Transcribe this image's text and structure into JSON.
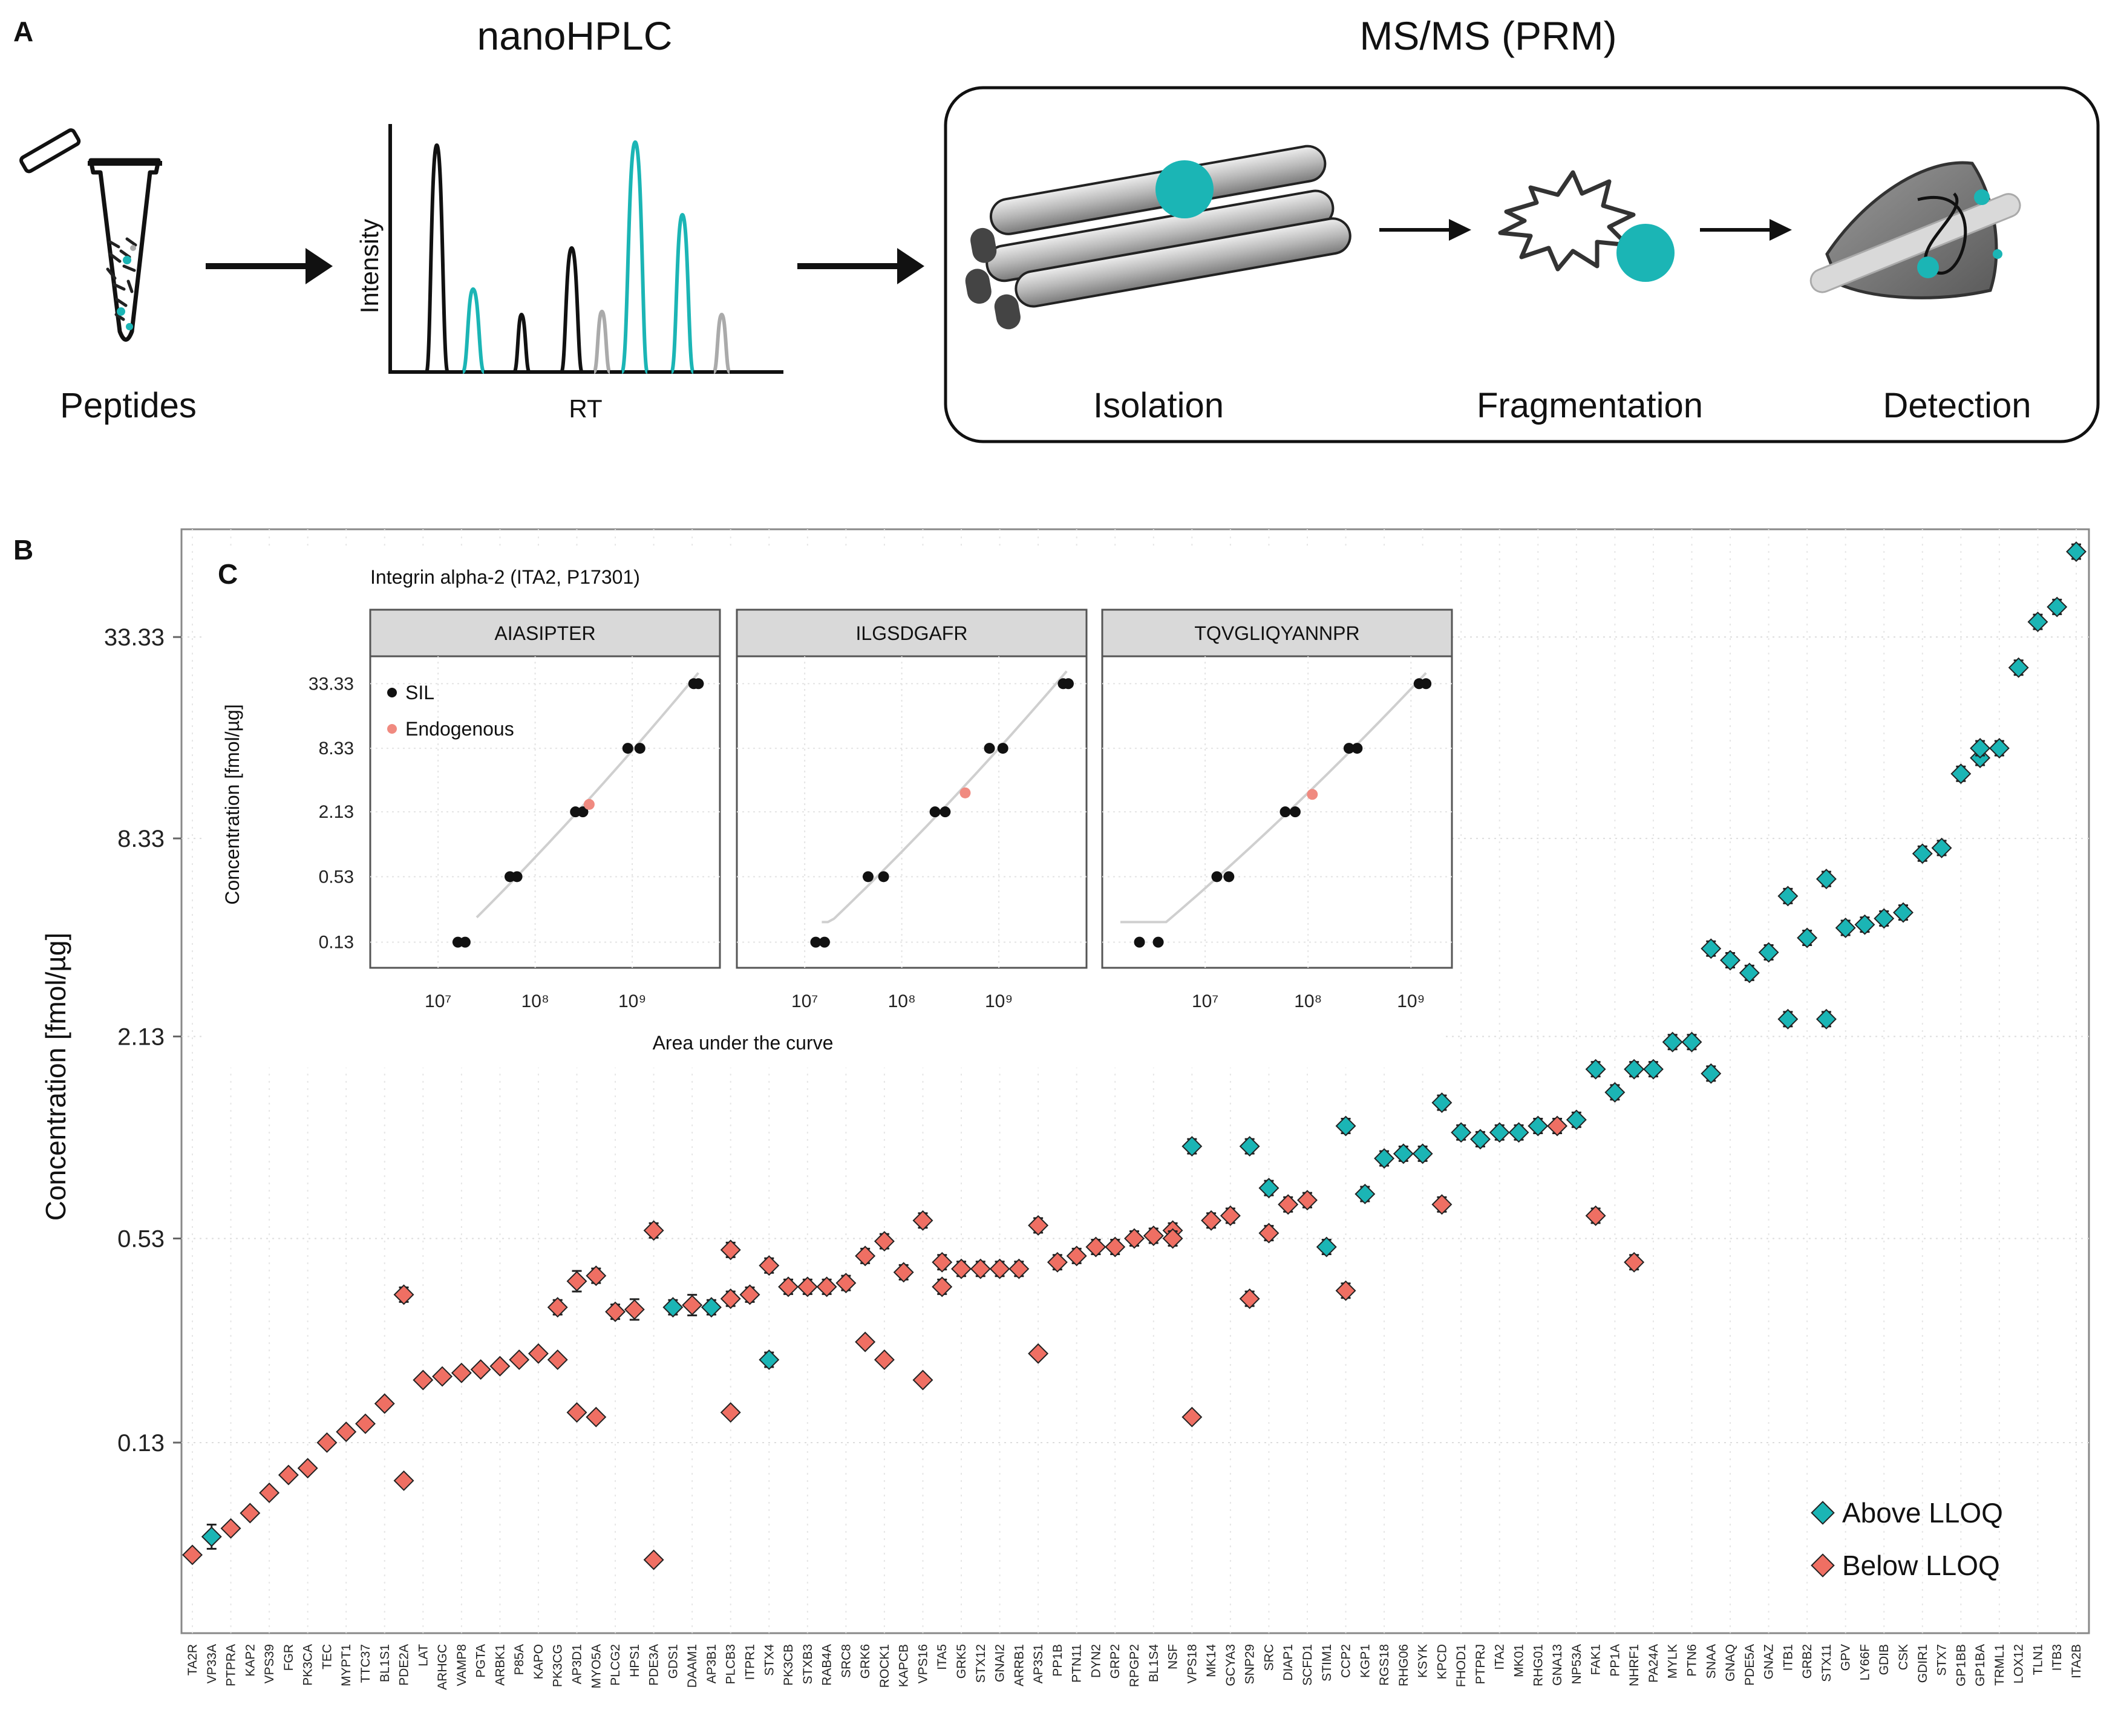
{
  "panelA": {
    "letter": "A",
    "step_peptides": "Peptides",
    "step_lc": "nanoHPLC",
    "lc_y_label": "Intensity",
    "lc_x_label": "RT",
    "step_ms": "MS/MS (PRM)",
    "ms_stages": [
      "Isolation",
      "Fragmentation",
      "Detection"
    ]
  },
  "panelB": {
    "letter": "B"
  },
  "panelC": {
    "letter": "C"
  },
  "colors": {
    "above": "#1bb5b5",
    "below": "#ef6f63",
    "black": "#111111",
    "gray": "#aaaaaa"
  },
  "chart_data": [
    {
      "id": "main",
      "type": "scatter",
      "ylabel": "Concentration [fmol/µg]",
      "y_scale": "log",
      "y_ticks": [
        "0.13",
        "0.53",
        "2.13",
        "8.33",
        "33.33"
      ],
      "ylim": [
        0.035,
        70
      ],
      "legend": [
        "Above LLOQ",
        "Below LLOQ"
      ],
      "legend_position": "bottom-right",
      "categories": [
        "TA2R",
        "VP33A",
        "PTPRA",
        "KAP2",
        "VPS39",
        "FGR",
        "PK3CA",
        "TEC",
        "MYPT1",
        "TTC37",
        "BL1S1",
        "PDE2A",
        "LAT",
        "ARHGC",
        "VAMP8",
        "PGTA",
        "ARBK1",
        "P85A",
        "KAPO",
        "PK3CG",
        "AP3D1",
        "MYO5A",
        "PLCG2",
        "HPS1",
        "PDE3A",
        "GDS1",
        "DAAM1",
        "AP3B1",
        "PLCB3",
        "ITPR1",
        "STX4",
        "PK3CB",
        "STXB3",
        "RAB4A",
        "SRC8",
        "GRK6",
        "ROCK1",
        "KAPCB",
        "VPS16",
        "ITA5",
        "GRK5",
        "STX12",
        "GNAI2",
        "ARRB1",
        "AP3S1",
        "PP1B",
        "PTN11",
        "DYN2",
        "GRP2",
        "RPGP2",
        "BL1S4",
        "NSF",
        "VPS18",
        "MK14",
        "GCYA3",
        "SNP29",
        "SRC",
        "DIAP1",
        "SCFD1",
        "STIM1",
        "CCP2",
        "KGP1",
        "RGS18",
        "RHG06",
        "KSYK",
        "KPCD",
        "FHOD1",
        "PTPRJ",
        "ITA2",
        "MK01",
        "RHG01",
        "GNA13",
        "NP53A",
        "FAK1",
        "PP1A",
        "NHRF1",
        "PA24A",
        "MYLK",
        "PTN6",
        "SNAA",
        "GNAQ",
        "PDE5A",
        "GNAZ",
        "ITB1",
        "GRB2",
        "STX11",
        "GPV",
        "LY66F",
        "GDIB",
        "CSK",
        "GDIR1",
        "STX7",
        "GP1BB",
        "GP1BA",
        "TRML1",
        "LOX12",
        "TLN1",
        "ITB3",
        "ITA2B"
      ],
      "series": [
        {
          "name": "Above LLOQ",
          "points": [
            {
              "x": "VP33A",
              "y": 0.068
            },
            {
              "x": "GDS1",
              "y": 0.33
            },
            {
              "x": "AP3B1",
              "y": 0.33
            },
            {
              "x": "STX4",
              "y": 0.23
            },
            {
              "x": "VPS18",
              "y": 1.0
            },
            {
              "x": "SNP29",
              "y": 1.0
            },
            {
              "x": "SRC",
              "y": 0.75
            },
            {
              "x": "STIM1",
              "y": 0.5
            },
            {
              "x": "CCP2",
              "y": 1.15
            },
            {
              "x": "KGP1",
              "y": 0.72
            },
            {
              "x": "RGS18",
              "y": 0.92
            },
            {
              "x": "RHG06",
              "y": 0.95
            },
            {
              "x": "KSYK",
              "y": 0.95
            },
            {
              "x": "KPCD",
              "y": 1.35
            },
            {
              "x": "FHOD1",
              "y": 1.1
            },
            {
              "x": "PTPRJ",
              "y": 1.05
            },
            {
              "x": "ITA2",
              "y": 1.1
            },
            {
              "x": "MK01",
              "y": 1.1
            },
            {
              "x": "RHG01",
              "y": 1.15
            },
            {
              "x": "NP53A",
              "y": 1.2
            },
            {
              "x": "FAK1",
              "y": 1.7
            },
            {
              "x": "PP1A",
              "y": 1.45
            },
            {
              "x": "NHRF1",
              "y": 1.7
            },
            {
              "x": "PA24A",
              "y": 1.7
            },
            {
              "x": "MYLK",
              "y": 2.05
            },
            {
              "x": "PTN6",
              "y": 2.05
            },
            {
              "x": "SNAA",
              "y": 1.65
            },
            {
              "x": "SNAA",
              "y": 3.9
            },
            {
              "x": "GNAQ",
              "y": 3.6
            },
            {
              "x": "PDE5A",
              "y": 3.3
            },
            {
              "x": "GNAZ",
              "y": 3.8
            },
            {
              "x": "ITB1",
              "y": 5.6
            },
            {
              "x": "ITB1",
              "y": 2.4
            },
            {
              "x": "GRB2",
              "y": 4.2
            },
            {
              "x": "STX11",
              "y": 6.3
            },
            {
              "x": "STX11",
              "y": 2.4
            },
            {
              "x": "GPV",
              "y": 4.5
            },
            {
              "x": "LY66F",
              "y": 4.6
            },
            {
              "x": "GDIB",
              "y": 4.8
            },
            {
              "x": "CSK",
              "y": 5.0
            },
            {
              "x": "GDIR1",
              "y": 7.5
            },
            {
              "x": "STX7",
              "y": 7.8
            },
            {
              "x": "GP1BB",
              "y": 13.0
            },
            {
              "x": "GP1BA",
              "y": 14.5
            },
            {
              "x": "GP1BA",
              "y": 15.5
            },
            {
              "x": "TRML1",
              "y": 15.5
            },
            {
              "x": "LOX12",
              "y": 27
            },
            {
              "x": "TLN1",
              "y": 37
            },
            {
              "x": "ITB3",
              "y": 41
            },
            {
              "x": "ITA2B",
              "y": 60
            }
          ]
        },
        {
          "name": "Below LLOQ",
          "points": [
            {
              "x": "TA2R",
              "y": 0.06
            },
            {
              "x": "PTPRA",
              "y": 0.072
            },
            {
              "x": "KAP2",
              "y": 0.08
            },
            {
              "x": "VPS39",
              "y": 0.092
            },
            {
              "x": "FGR",
              "y": 0.104
            },
            {
              "x": "PK3CA",
              "y": 0.109
            },
            {
              "x": "TEC",
              "y": 0.13
            },
            {
              "x": "MYPT1",
              "y": 0.14
            },
            {
              "x": "TTC37",
              "y": 0.148
            },
            {
              "x": "BL1S1",
              "y": 0.17
            },
            {
              "x": "PDE2A",
              "y": 0.36
            },
            {
              "x": "PDE2A",
              "y": 0.1
            },
            {
              "x": "LAT",
              "y": 0.2
            },
            {
              "x": "ARHGC",
              "y": 0.205
            },
            {
              "x": "VAMP8",
              "y": 0.21
            },
            {
              "x": "PGTA",
              "y": 0.215
            },
            {
              "x": "ARBK1",
              "y": 0.22
            },
            {
              "x": "P85A",
              "y": 0.23
            },
            {
              "x": "KAPO",
              "y": 0.24
            },
            {
              "x": "PK3CG",
              "y": 0.33
            },
            {
              "x": "PK3CG",
              "y": 0.23
            },
            {
              "x": "AP3D1",
              "y": 0.395
            },
            {
              "x": "AP3D1",
              "y": 0.16
            },
            {
              "x": "MYO5A",
              "y": 0.41
            },
            {
              "x": "MYO5A",
              "y": 0.155
            },
            {
              "x": "PLCG2",
              "y": 0.32
            },
            {
              "x": "HPS1",
              "y": 0.325
            },
            {
              "x": "PDE3A",
              "y": 0.56
            },
            {
              "x": "PDE3A",
              "y": 0.058
            },
            {
              "x": "DAAM1",
              "y": 0.335
            },
            {
              "x": "PLCB3",
              "y": 0.35
            },
            {
              "x": "PLCB3",
              "y": 0.16
            },
            {
              "x": "PLCB3",
              "y": 0.49
            },
            {
              "x": "ITPR1",
              "y": 0.36
            },
            {
              "x": "STX4",
              "y": 0.44
            },
            {
              "x": "PK3CB",
              "y": 0.38
            },
            {
              "x": "STXB3",
              "y": 0.38
            },
            {
              "x": "RAB4A",
              "y": 0.38
            },
            {
              "x": "SRC8",
              "y": 0.39
            },
            {
              "x": "GRK6",
              "y": 0.47
            },
            {
              "x": "GRK6",
              "y": 0.26
            },
            {
              "x": "ROCK1",
              "y": 0.52
            },
            {
              "x": "ROCK1",
              "y": 0.23
            },
            {
              "x": "KAPCB",
              "y": 0.42
            },
            {
              "x": "VPS16",
              "y": 0.6
            },
            {
              "x": "VPS16",
              "y": 0.2
            },
            {
              "x": "ITA5",
              "y": 0.45
            },
            {
              "x": "ITA5",
              "y": 0.38
            },
            {
              "x": "GRK5",
              "y": 0.43
            },
            {
              "x": "STX12",
              "y": 0.43
            },
            {
              "x": "GNAI2",
              "y": 0.43
            },
            {
              "x": "ARRB1",
              "y": 0.43
            },
            {
              "x": "AP3S1",
              "y": 0.58
            },
            {
              "x": "AP3S1",
              "y": 0.24
            },
            {
              "x": "PP1B",
              "y": 0.45
            },
            {
              "x": "PTN11",
              "y": 0.47
            },
            {
              "x": "DYN2",
              "y": 0.5
            },
            {
              "x": "GRP2",
              "y": 0.5
            },
            {
              "x": "RPGP2",
              "y": 0.53
            },
            {
              "x": "BL1S4",
              "y": 0.54
            },
            {
              "x": "NSF",
              "y": 0.56
            },
            {
              "x": "NSF",
              "y": 0.53
            },
            {
              "x": "VPS18",
              "y": 0.155
            },
            {
              "x": "MK14",
              "y": 0.6
            },
            {
              "x": "GCYA3",
              "y": 0.62
            },
            {
              "x": "SNP29",
              "y": 0.35
            },
            {
              "x": "SRC",
              "y": 0.55
            },
            {
              "x": "DIAP1",
              "y": 0.67
            },
            {
              "x": "SCFD1",
              "y": 0.69
            },
            {
              "x": "CCP2",
              "y": 0.37
            },
            {
              "x": "KPCD",
              "y": 0.67
            },
            {
              "x": "GNA13",
              "y": 1.15
            },
            {
              "x": "FAK1",
              "y": 0.62
            },
            {
              "x": "NHRF1",
              "y": 0.45
            }
          ]
        }
      ]
    },
    {
      "id": "inset",
      "type": "scatter",
      "title": "Integrin alpha-2 (ITA2, P17301)",
      "ylabel": "Concentration [fmol/µg]",
      "xlabel": "Area under the curve",
      "x_scale": "log",
      "y_scale": "log",
      "y_ticks": [
        "0.13",
        "0.53",
        "2.13",
        "8.33",
        "33.33"
      ],
      "legend": [
        "SIL",
        "Endogenous"
      ],
      "legend_position": "top-left",
      "facets": [
        {
          "label": "AIASIPTER",
          "x_ticks": [
            {
              "v": 10000000.0,
              "label": "10⁷"
            },
            {
              "v": 100000000.0,
              "label": "10⁸"
            },
            {
              "v": 1000000000.0,
              "label": "10⁹"
            }
          ],
          "xlim": [
            2000000.0,
            8000000000.0
          ],
          "sil": [
            [
              16000000.0,
              0.13
            ],
            [
              19000000.0,
              0.13
            ],
            [
              55000000.0,
              0.53
            ],
            [
              65000000.0,
              0.53
            ],
            [
              260000000.0,
              2.13
            ],
            [
              310000000.0,
              2.13
            ],
            [
              900000000.0,
              8.33
            ],
            [
              1200000000.0,
              8.33
            ],
            [
              4300000000.0,
              33.33
            ],
            [
              4800000000.0,
              33.33
            ]
          ],
          "endogenous": [
            [
              360000000.0,
              2.5
            ]
          ],
          "fit_from": 25000000.0,
          "fit_to": 4800000000.0
        },
        {
          "label": "ILGSDGAFR",
          "x_ticks": [
            {
              "v": 10000000.0,
              "label": "10⁷"
            },
            {
              "v": 100000000.0,
              "label": "10⁸"
            },
            {
              "v": 1000000000.0,
              "label": "10⁹"
            }
          ],
          "xlim": [
            2000000.0,
            8000000000.0
          ],
          "sil": [
            [
              13000000.0,
              0.13
            ],
            [
              16000000.0,
              0.13
            ],
            [
              45000000.0,
              0.53
            ],
            [
              65000000.0,
              0.53
            ],
            [
              220000000.0,
              2.13
            ],
            [
              280000000.0,
              2.13
            ],
            [
              800000000.0,
              8.33
            ],
            [
              1100000000.0,
              8.33
            ],
            [
              4600000000.0,
              33.33
            ],
            [
              5200000000.0,
              33.33
            ]
          ],
          "endogenous": [
            [
              450000000.0,
              3.2
            ]
          ],
          "fit_from": 15000000.0,
          "fit_to": 5000000000.0
        },
        {
          "label": "TQVGLIQYANNPR",
          "x_ticks": [
            {
              "v": 10000000.0,
              "label": "10⁷"
            },
            {
              "v": 100000000.0,
              "label": "10⁸"
            },
            {
              "v": 1000000000.0,
              "label": "10⁹"
            }
          ],
          "xlim": [
            1000000.0,
            2500000000.0
          ],
          "sil": [
            [
              2300000.0,
              0.13
            ],
            [
              3500000.0,
              0.13
            ],
            [
              13000000.0,
              0.53
            ],
            [
              17000000.0,
              0.53
            ],
            [
              60000000.0,
              2.13
            ],
            [
              75000000.0,
              2.13
            ],
            [
              250000000.0,
              8.33
            ],
            [
              300000000.0,
              8.33
            ],
            [
              1200000000.0,
              33.33
            ],
            [
              1400000000.0,
              33.33
            ]
          ],
          "endogenous": [
            [
              110000000.0,
              3.1
            ]
          ],
          "fit_from": 1500000.0,
          "fit_to": 1400000000.0
        }
      ]
    }
  ]
}
